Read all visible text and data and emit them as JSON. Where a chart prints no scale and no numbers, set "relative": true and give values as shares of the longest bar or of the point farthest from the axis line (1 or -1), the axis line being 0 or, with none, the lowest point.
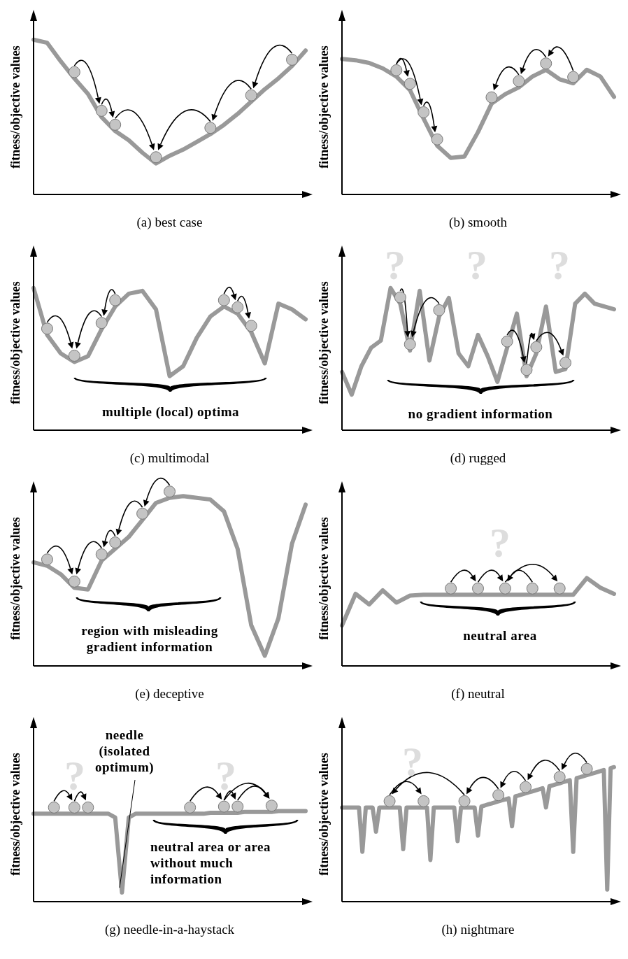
{
  "chart_data": [
    {
      "type": "line",
      "title": "(a) best case",
      "ylabel": "fitness/objective values",
      "relative": true,
      "categories": [
        null,
        null,
        null,
        null,
        null,
        null,
        null,
        null,
        null,
        null,
        null,
        null,
        null,
        null,
        null,
        null,
        null,
        null,
        null,
        null,
        null
      ],
      "series": [
        {
          "color": "#999999",
          "values": [
            1.0,
            0.98,
            0.86,
            0.75,
            0.65,
            0.5,
            0.41,
            0.35,
            0.27,
            0.2,
            0.25,
            0.29,
            0.34,
            0.39,
            0.45,
            0.52,
            0.6,
            0.68,
            0.75,
            0.83,
            0.93
          ]
        }
      ]
    },
    {
      "type": "line",
      "title": "(b) smooth",
      "ylabel": "fitness/objective values",
      "relative": true,
      "categories": [
        null,
        null,
        null,
        null,
        null,
        null,
        null,
        null,
        null,
        null,
        null,
        null,
        null,
        null,
        null,
        null,
        null,
        null,
        null,
        null,
        null
      ],
      "series": [
        {
          "color": "#999999",
          "values": [
            1.0,
            0.99,
            0.97,
            0.93,
            0.87,
            0.77,
            0.56,
            0.36,
            0.27,
            0.28,
            0.46,
            0.67,
            0.74,
            0.79,
            0.87,
            0.92,
            0.85,
            0.82,
            0.92,
            0.87,
            0.72
          ]
        }
      ]
    },
    {
      "type": "line",
      "title": "(c) multimodal",
      "ylabel": "fitness/objective values",
      "relative": true,
      "categories": [
        null,
        null,
        null,
        null,
        null,
        null,
        null,
        null,
        null,
        null,
        null,
        null,
        null,
        null,
        null,
        null,
        null,
        null,
        null,
        null,
        null
      ],
      "series": [
        {
          "color": "#999999",
          "values": [
            1.0,
            0.67,
            0.54,
            0.48,
            0.52,
            0.71,
            0.87,
            0.96,
            0.98,
            0.85,
            0.38,
            0.45,
            0.65,
            0.8,
            0.87,
            0.82,
            0.69,
            0.47,
            0.89,
            0.85,
            0.78
          ]
        }
      ],
      "annotations": [
        "multiple (local) optima"
      ]
    },
    {
      "type": "line",
      "title": "(d) rugged",
      "ylabel": "fitness/objective values",
      "relative": true,
      "categories": [
        null,
        null,
        null,
        null,
        null,
        null,
        null,
        null,
        null,
        null,
        null,
        null,
        null,
        null,
        null,
        null,
        null,
        null,
        null,
        null,
        null,
        null,
        null,
        null,
        null,
        null,
        null,
        null,
        null
      ],
      "series": [
        {
          "color": "#999999",
          "values": [
            0.41,
            0.25,
            0.45,
            0.58,
            0.63,
            1.0,
            0.89,
            0.56,
            0.98,
            0.49,
            0.8,
            0.93,
            0.54,
            0.45,
            0.67,
            0.52,
            0.34,
            0.58,
            0.82,
            0.38,
            0.54,
            0.87,
            0.41,
            0.43,
            0.89,
            0.96,
            0.89,
            0.87,
            0.85
          ]
        }
      ],
      "annotations": [
        "?",
        "?",
        "?",
        "no gradient information"
      ]
    },
    {
      "type": "line",
      "title": "(e) deceptive",
      "ylabel": "fitness/objective values",
      "relative": true,
      "categories": [
        null,
        null,
        null,
        null,
        null,
        null,
        null,
        null,
        null,
        null,
        null,
        null,
        null,
        null,
        null,
        null,
        null,
        null,
        null,
        null,
        null
      ],
      "series": [
        {
          "color": "#999999",
          "values": [
            0.61,
            0.59,
            0.54,
            0.46,
            0.45,
            0.62,
            0.69,
            0.76,
            0.86,
            0.96,
            0.99,
            1.0,
            0.99,
            0.98,
            0.91,
            0.69,
            0.24,
            0.06,
            0.28,
            0.72,
            0.95
          ]
        }
      ],
      "annotations": [
        "region with misleading gradient information"
      ]
    },
    {
      "type": "line",
      "title": "(f) neutral",
      "ylabel": "fitness/objective values",
      "relative": true,
      "categories": [
        null,
        null,
        null,
        null,
        null,
        null,
        null,
        null,
        null,
        null,
        null,
        null,
        null,
        null,
        null,
        null,
        null,
        null,
        null,
        null,
        null
      ],
      "series": [
        {
          "color": "#999999",
          "values": [
            0.46,
            0.82,
            0.7,
            0.86,
            0.72,
            0.8,
            0.81,
            0.81,
            0.81,
            0.81,
            0.81,
            0.81,
            0.81,
            0.81,
            0.81,
            0.81,
            0.81,
            0.81,
            1.0,
            0.89,
            0.82
          ]
        }
      ],
      "annotations": [
        "?",
        "neutral area"
      ]
    },
    {
      "type": "line",
      "title": "(g) needle-in-a-haystack",
      "ylabel": "fitness/objective values",
      "relative": true,
      "categories": [
        null,
        null,
        null,
        null,
        null,
        null,
        null,
        null,
        null,
        null,
        null,
        null,
        null,
        null,
        null,
        null,
        null,
        null,
        null,
        null,
        null,
        null,
        null,
        null,
        null,
        null,
        null,
        null,
        null,
        null,
        null,
        null,
        null,
        null,
        null,
        null,
        null,
        null,
        null,
        null,
        null
      ],
      "series": [
        {
          "color": "#999999",
          "values": [
            0.97,
            0.97,
            0.97,
            0.97,
            0.97,
            0.97,
            0.97,
            0.97,
            0.97,
            0.97,
            0.97,
            0.97,
            0.93,
            0.1,
            0.93,
            0.97,
            0.97,
            0.97,
            0.97,
            0.97,
            0.97,
            0.97,
            0.97,
            0.97,
            0.97,
            0.97,
            0.98,
            0.98,
            0.98,
            0.98,
            0.98,
            0.99,
            0.99,
            0.99,
            0.99,
            0.99,
            1.0,
            1.0,
            1.0,
            1.0,
            1.0
          ]
        }
      ],
      "annotations": [
        "needle (isolated optimum)",
        "?",
        "?",
        "neutral area or area without much information"
      ]
    },
    {
      "type": "line",
      "title": "(h) nightmare",
      "ylabel": "fitness/objective values",
      "relative": true,
      "categories": [
        null,
        null,
        null,
        null,
        null,
        null,
        null,
        null,
        null,
        null,
        null,
        null,
        null,
        null,
        null,
        null,
        null,
        null,
        null,
        null,
        null,
        null,
        null,
        null,
        null,
        null,
        null,
        null,
        null,
        null,
        null,
        null,
        null,
        null,
        null,
        null,
        null,
        null,
        null,
        null,
        null,
        null,
        null,
        null,
        null,
        null,
        null,
        null,
        null,
        null,
        null,
        null,
        null,
        null,
        null,
        null,
        null,
        null,
        null,
        null,
        null,
        null,
        null,
        null,
        null,
        null,
        null,
        null,
        null,
        null,
        null,
        null,
        null,
        null,
        null,
        null,
        null,
        null,
        null,
        null,
        null
      ],
      "series": [
        {
          "color": "#999999",
          "values": [
            0.7,
            0.7,
            0.7,
            0.7,
            0.7,
            0.7,
            0.37,
            0.7,
            0.7,
            0.7,
            0.52,
            0.7,
            0.7,
            0.7,
            0.7,
            0.7,
            0.7,
            0.7,
            0.39,
            0.7,
            0.7,
            0.7,
            0.7,
            0.7,
            0.7,
            0.7,
            0.31,
            0.7,
            0.7,
            0.7,
            0.7,
            0.7,
            0.7,
            0.7,
            0.45,
            0.7,
            0.7,
            0.7,
            0.7,
            0.7,
            0.49,
            0.708,
            0.715,
            0.723,
            0.73,
            0.738,
            0.745,
            0.753,
            0.76,
            0.768,
            0.56,
            0.783,
            0.79,
            0.798,
            0.805,
            0.813,
            0.82,
            0.828,
            0.835,
            0.843,
            0.7,
            0.858,
            0.865,
            0.873,
            0.88,
            0.888,
            0.895,
            0.903,
            0.37,
            0.918,
            0.925,
            0.933,
            0.94,
            0.948,
            0.955,
            0.963,
            0.97,
            0.978,
            0.09,
            0.993,
            1.0
          ]
        }
      ],
      "annotations": [
        "?"
      ]
    }
  ]
}
